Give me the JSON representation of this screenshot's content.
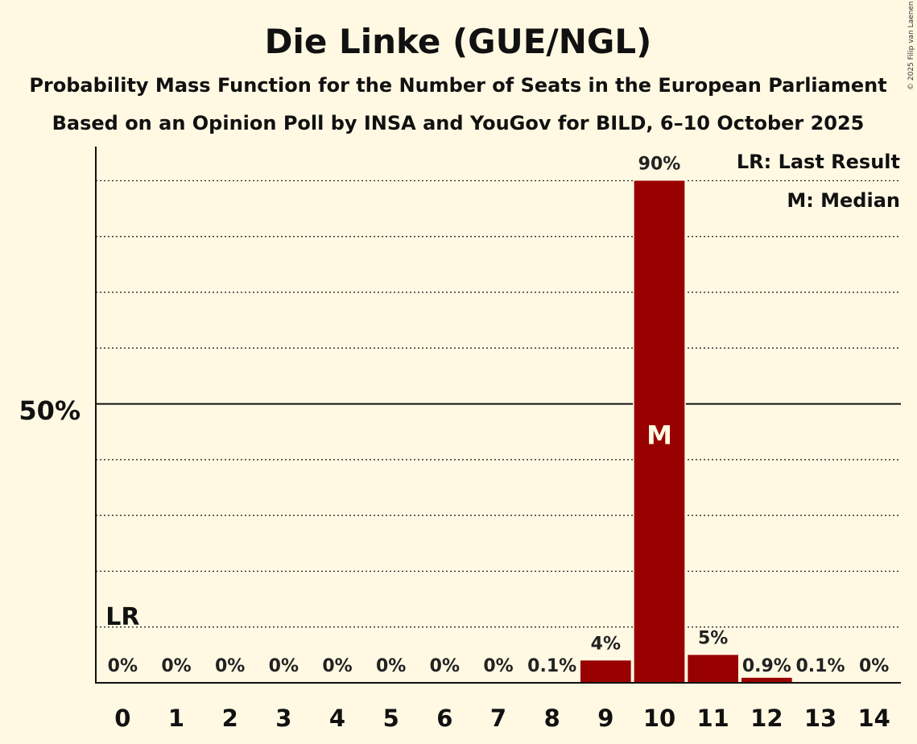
{
  "title": "Die Linke (GUE/NGL)",
  "subtitle1": "Probability Mass Function for the Number of Seats in the European Parliament",
  "subtitle2": "Based on an Opinion Poll by INSA and YouGov for BILD, 6–10 October 2025",
  "copyright": "© 2025 Filip van Laenen",
  "legend": {
    "lr": "LR: Last Result",
    "median": "M: Median"
  },
  "y_tick_label": "50%",
  "lr_label": "LR",
  "median_label": "M",
  "colors": {
    "bar": "#990000",
    "background": "#FFF9E3",
    "median_text": "#FFF9E3"
  },
  "chart_data": {
    "type": "bar",
    "categories": [
      "0",
      "1",
      "2",
      "3",
      "4",
      "5",
      "6",
      "7",
      "8",
      "9",
      "10",
      "11",
      "12",
      "13",
      "14"
    ],
    "values": [
      0,
      0,
      0,
      0,
      0,
      0,
      0,
      0,
      0.1,
      4,
      90,
      5,
      0.9,
      0.1,
      0
    ],
    "labels": [
      "0%",
      "0%",
      "0%",
      "0%",
      "0%",
      "0%",
      "0%",
      "0%",
      "0.1%",
      "4%",
      "90%",
      "5%",
      "0.9%",
      "0.1%",
      "0%"
    ],
    "ylim": [
      0,
      98
    ],
    "gridlines": [
      10,
      20,
      30,
      40,
      60,
      70,
      80,
      90
    ],
    "major_line": 50,
    "last_result": 0,
    "median": 10,
    "grid": true,
    "legend_position": "top-right"
  }
}
